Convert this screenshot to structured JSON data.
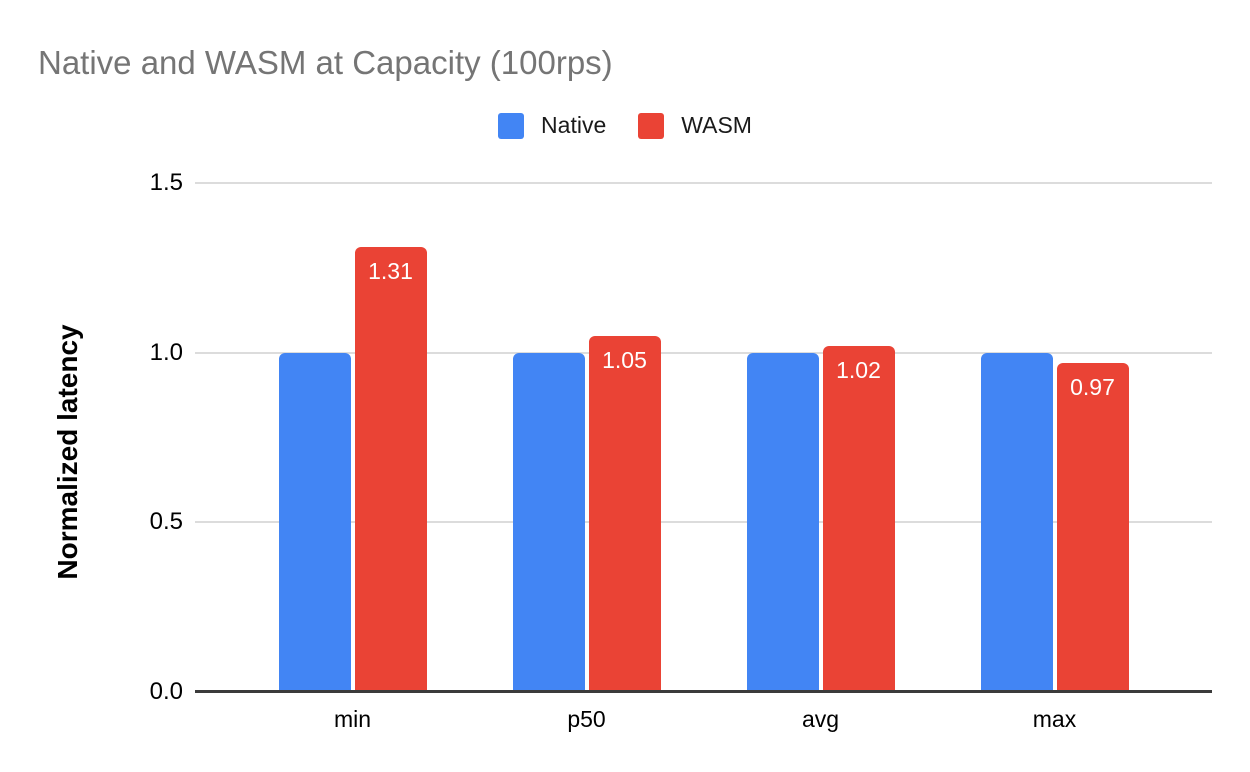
{
  "page": {
    "background": "#ffffff"
  },
  "chart_data": {
    "type": "bar",
    "title": "Native and WASM at Capacity (100rps)",
    "title_color": "#757575",
    "categories": [
      "min",
      "p50",
      "avg",
      "max"
    ],
    "series": [
      {
        "name": "Native",
        "color": "#4285F4",
        "values": [
          1.0,
          1.0,
          1.0,
          1.0
        ],
        "show_labels": false,
        "labels": null
      },
      {
        "name": "WASM",
        "color": "#EA4335",
        "values": [
          1.31,
          1.05,
          1.02,
          0.97
        ],
        "show_labels": true,
        "labels": [
          "1.31",
          "1.05",
          "1.02",
          "0.97"
        ]
      }
    ],
    "xlabel": "",
    "ylabel": "Normalized latency",
    "ylim": [
      0,
      1.5
    ],
    "yticks": [
      "0.0",
      "0.5",
      "1.0",
      "1.5"
    ],
    "grid": true,
    "legend_position": "top",
    "gridline_color": "#dcdcdc",
    "axis_line_color": "#3b3b3b",
    "bar_label_color": "#ffffff"
  }
}
